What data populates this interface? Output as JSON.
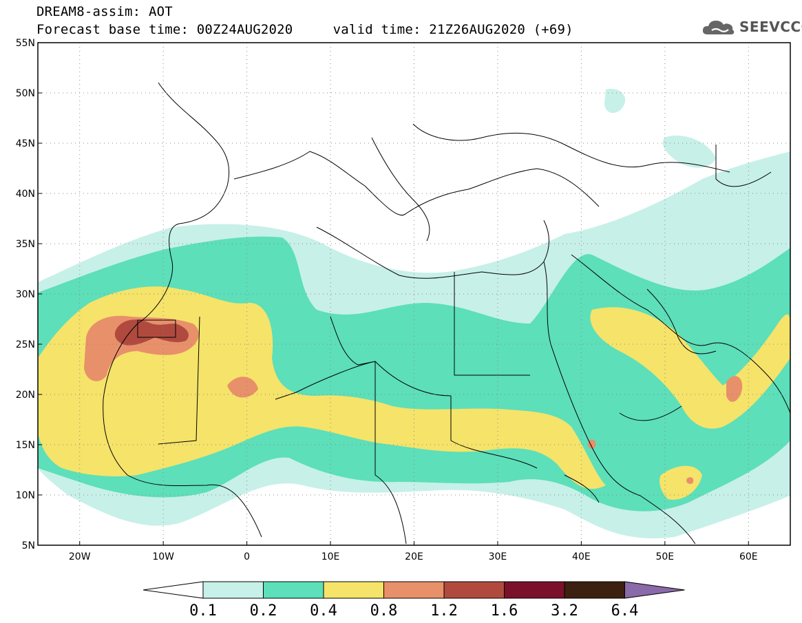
{
  "header": {
    "title": "DREAM8-assim: AOT",
    "subtitle": "Forecast base time: 00Z24AUG2020     valid time: 21Z26AUG2020 (+69)"
  },
  "logo": {
    "text": "SEEVCCC",
    "icon": "cloud-logo-icon"
  },
  "map": {
    "lat_labels": [
      "55N",
      "50N",
      "45N",
      "40N",
      "35N",
      "30N",
      "25N",
      "20N",
      "15N",
      "10N",
      "5N"
    ],
    "lon_labels": [
      "20W",
      "10W",
      "0",
      "10E",
      "20E",
      "30E",
      "40E",
      "50E",
      "60E"
    ],
    "lat_range": [
      5,
      55
    ],
    "lon_range": [
      -25,
      65
    ],
    "lat_ticks": [
      55,
      50,
      45,
      40,
      35,
      30,
      25,
      20,
      15,
      10,
      5
    ],
    "lon_ticks": [
      -20,
      -10,
      0,
      10,
      20,
      30,
      40,
      50,
      60
    ]
  },
  "colorbar": {
    "colors": [
      "#ffffff",
      "#c7f0e8",
      "#5ddfb9",
      "#f5e36a",
      "#e8906a",
      "#b04a3e",
      "#7a1029",
      "#3c2010",
      "#8a6aa8"
    ],
    "labels": [
      "0.1",
      "0.2",
      "0.4",
      "0.8",
      "1.2",
      "1.6",
      "3.2",
      "6.4"
    ]
  }
}
